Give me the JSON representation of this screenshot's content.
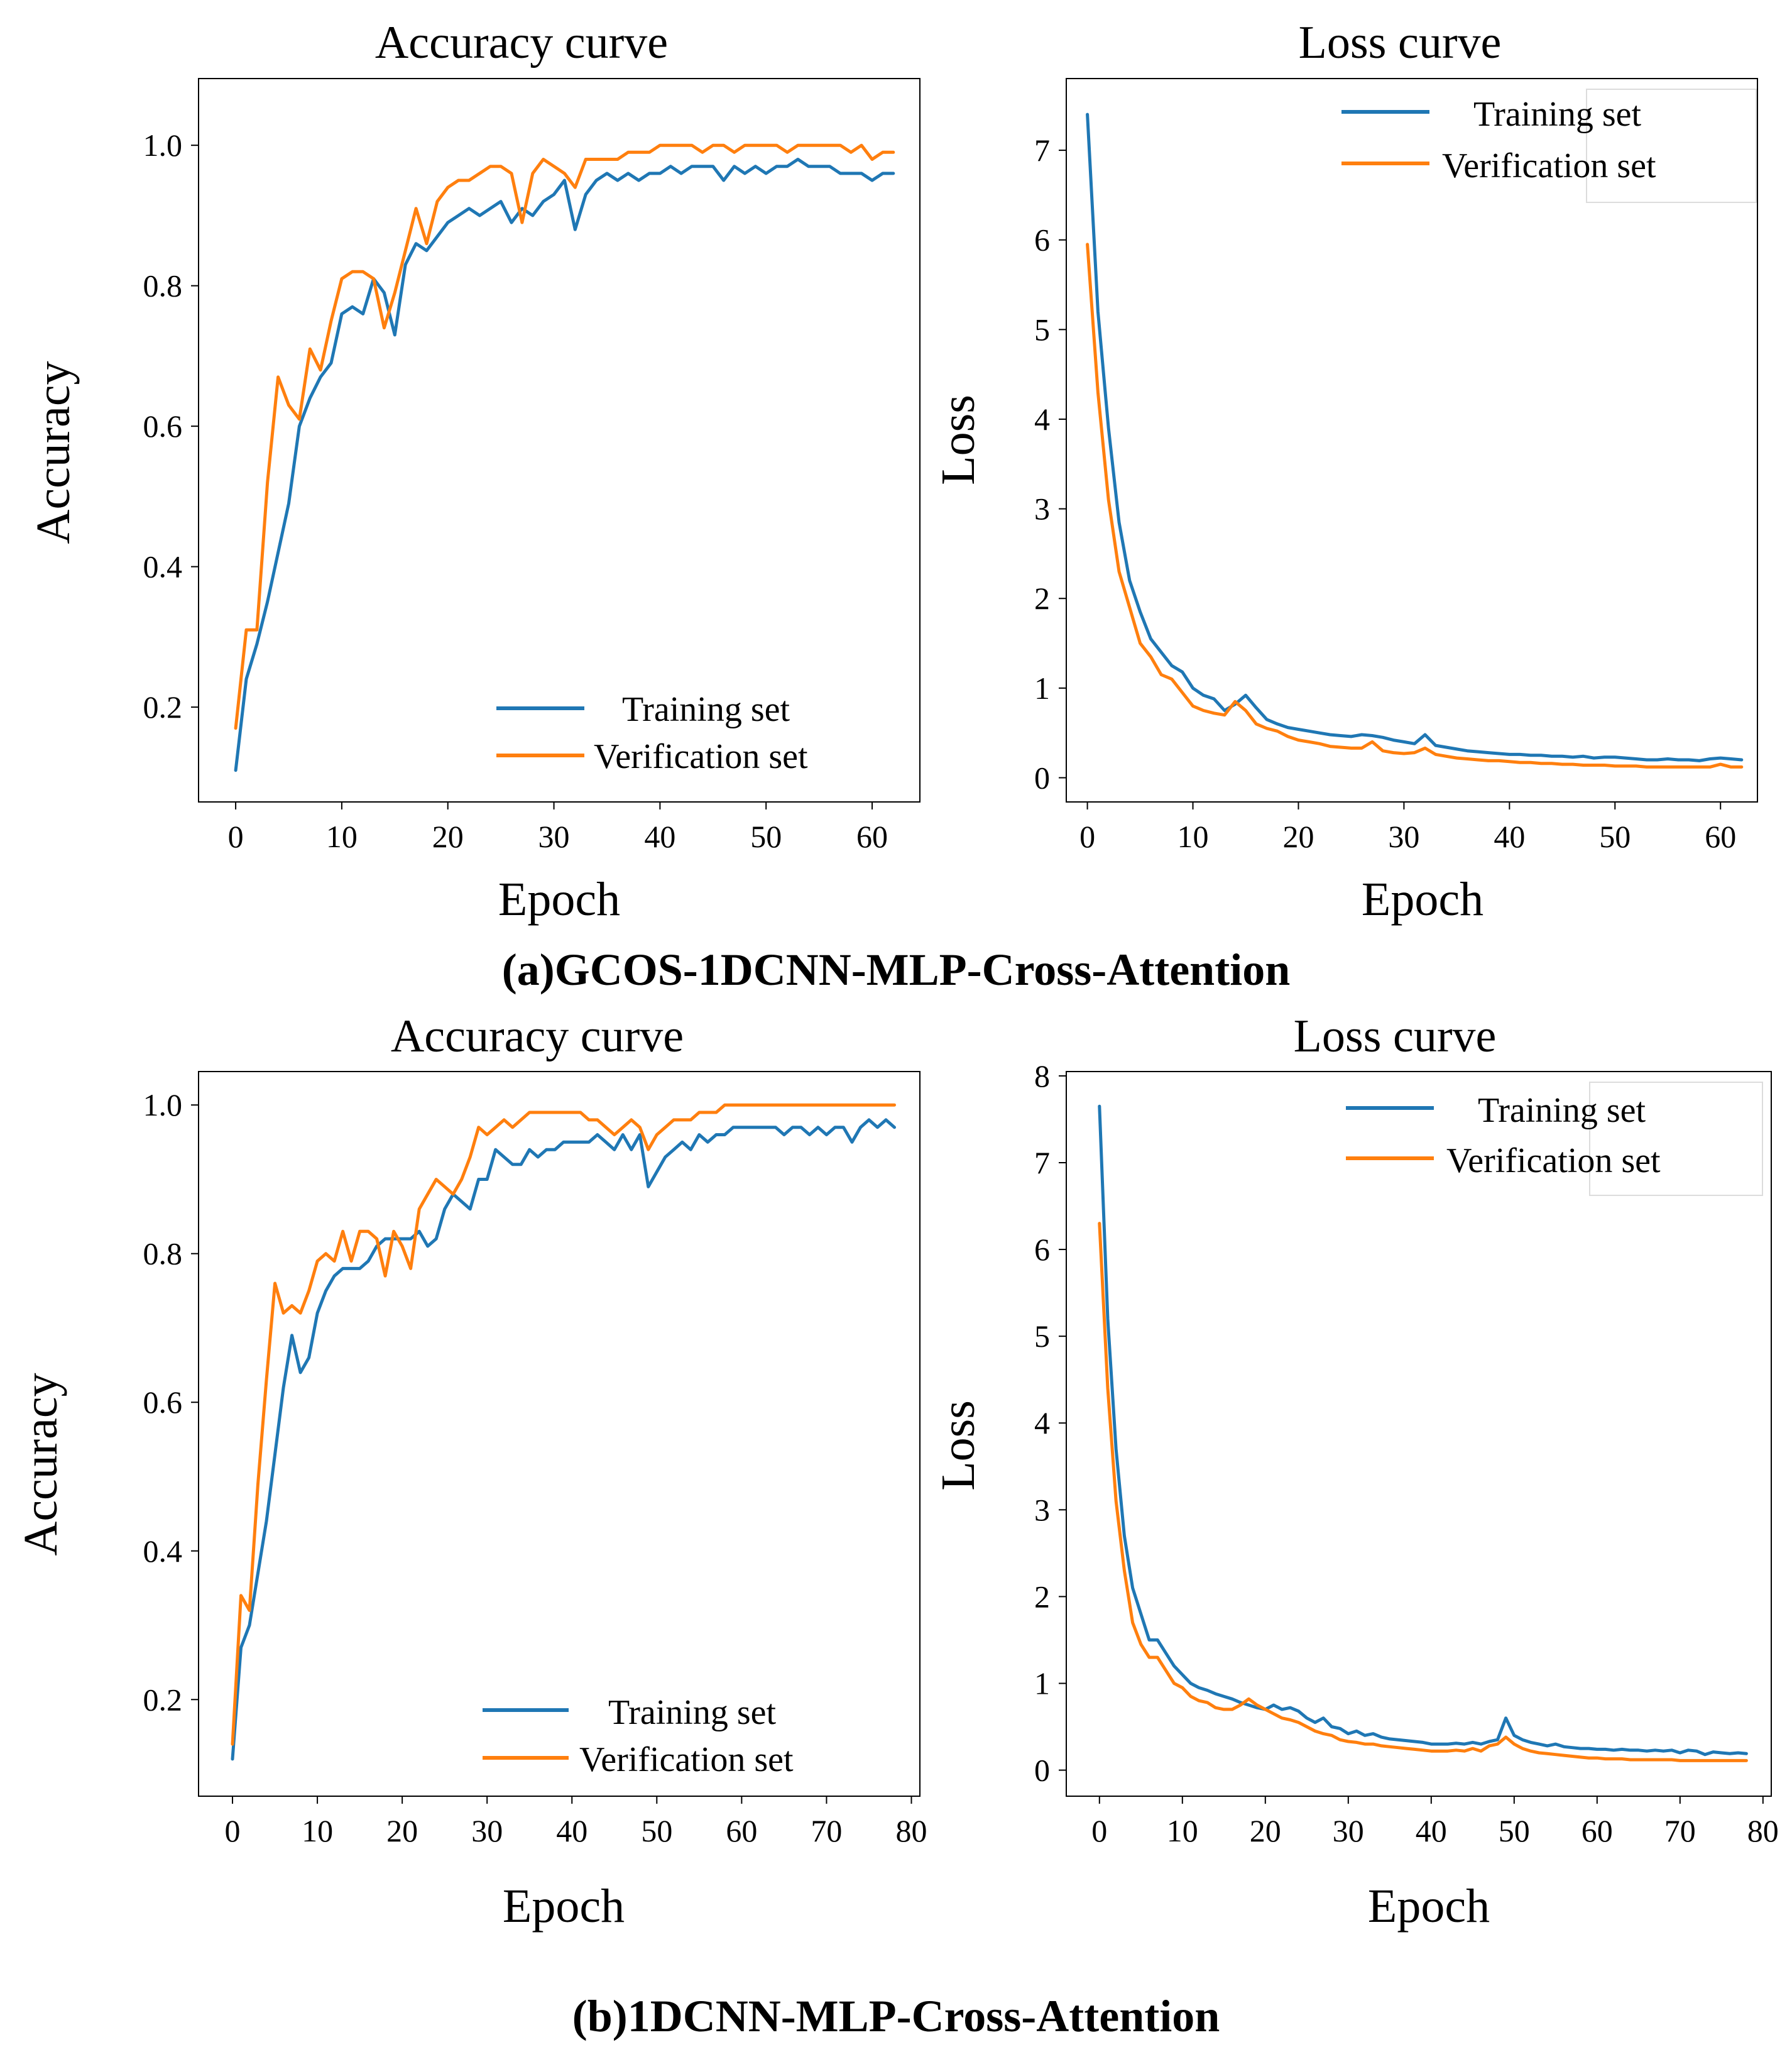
{
  "panels": [
    {
      "caption": "(a)GCOS-1DCNN-MLP-Cross-Attention",
      "charts": [
        {
          "type": "line",
          "title": "Accuracy curve",
          "xlabel": "Epoch",
          "ylabel": "Accuracy",
          "xlim": [
            -3.5,
            64.5
          ],
          "ylim": [
            0.065,
            1.095
          ],
          "xticks": [
            0,
            10,
            20,
            30,
            40,
            50,
            60
          ],
          "yticks": [
            0.2,
            0.4,
            0.6,
            0.8,
            1.0
          ],
          "ytick_labels": [
            "0.2",
            "0.4",
            "0.6",
            "0.8",
            "1.0"
          ],
          "legend_position": "bottom-right",
          "series": [
            {
              "name": "Training set",
              "color": "#1f77b4",
              "values": [
                0.11,
                0.24,
                0.29,
                0.35,
                0.42,
                0.49,
                0.6,
                0.64,
                0.67,
                0.69,
                0.76,
                0.77,
                0.76,
                0.81,
                0.79,
                0.73,
                0.83,
                0.86,
                0.85,
                0.87,
                0.89,
                0.9,
                0.91,
                0.9,
                0.91,
                0.92,
                0.89,
                0.91,
                0.9,
                0.92,
                0.93,
                0.95,
                0.88,
                0.93,
                0.95,
                0.96,
                0.95,
                0.96,
                0.95,
                0.96,
                0.96,
                0.97,
                0.96,
                0.97,
                0.97,
                0.97,
                0.95,
                0.97,
                0.96,
                0.97,
                0.96,
                0.97,
                0.97,
                0.98,
                0.97,
                0.97,
                0.97,
                0.96,
                0.96,
                0.96,
                0.95,
                0.96,
                0.96
              ]
            },
            {
              "name": "Verification set",
              "color": "#ff7f0e",
              "values": [
                0.17,
                0.31,
                0.31,
                0.52,
                0.67,
                0.63,
                0.61,
                0.71,
                0.68,
                0.75,
                0.81,
                0.82,
                0.82,
                0.81,
                0.74,
                0.79,
                0.85,
                0.91,
                0.86,
                0.92,
                0.94,
                0.95,
                0.95,
                0.96,
                0.97,
                0.97,
                0.96,
                0.89,
                0.96,
                0.98,
                0.97,
                0.96,
                0.94,
                0.98,
                0.98,
                0.98,
                0.98,
                0.99,
                0.99,
                0.99,
                1.0,
                1.0,
                1.0,
                1.0,
                0.99,
                1.0,
                1.0,
                0.99,
                1.0,
                1.0,
                1.0,
                1.0,
                0.99,
                1.0,
                1.0,
                1.0,
                1.0,
                1.0,
                0.99,
                1.0,
                0.98,
                0.99,
                0.99
              ]
            }
          ]
        },
        {
          "type": "line",
          "title": "Loss curve",
          "xlabel": "Epoch",
          "ylabel": "Loss",
          "xlim": [
            -2,
            63.5
          ],
          "ylim": [
            -0.27,
            7.8
          ],
          "xticks": [
            0,
            10,
            20,
            30,
            40,
            50,
            60
          ],
          "yticks": [
            0,
            1,
            2,
            3,
            4,
            5,
            6,
            7
          ],
          "ytick_labels": [
            "0",
            "1",
            "2",
            "3",
            "4",
            "5",
            "6",
            "7"
          ],
          "legend_position": "top-right",
          "series": [
            {
              "name": "Training set",
              "color": "#1f77b4",
              "values": [
                7.4,
                5.2,
                3.9,
                2.85,
                2.2,
                1.85,
                1.55,
                1.4,
                1.25,
                1.18,
                1.0,
                0.92,
                0.88,
                0.75,
                0.82,
                0.92,
                0.78,
                0.65,
                0.6,
                0.56,
                0.54,
                0.52,
                0.5,
                0.48,
                0.47,
                0.46,
                0.48,
                0.47,
                0.45,
                0.42,
                0.4,
                0.38,
                0.48,
                0.36,
                0.34,
                0.32,
                0.3,
                0.29,
                0.28,
                0.27,
                0.26,
                0.26,
                0.25,
                0.25,
                0.24,
                0.24,
                0.23,
                0.24,
                0.22,
                0.23,
                0.23,
                0.22,
                0.21,
                0.2,
                0.2,
                0.21,
                0.2,
                0.2,
                0.19,
                0.21,
                0.22,
                0.21,
                0.2
              ]
            },
            {
              "name": "Verification set",
              "color": "#ff7f0e",
              "values": [
                5.95,
                4.3,
                3.1,
                2.3,
                1.9,
                1.5,
                1.35,
                1.15,
                1.1,
                0.95,
                0.8,
                0.75,
                0.72,
                0.7,
                0.85,
                0.75,
                0.6,
                0.55,
                0.52,
                0.46,
                0.42,
                0.4,
                0.38,
                0.35,
                0.34,
                0.33,
                0.33,
                0.4,
                0.3,
                0.28,
                0.27,
                0.28,
                0.33,
                0.26,
                0.24,
                0.22,
                0.21,
                0.2,
                0.19,
                0.19,
                0.18,
                0.17,
                0.17,
                0.16,
                0.16,
                0.15,
                0.15,
                0.14,
                0.14,
                0.14,
                0.13,
                0.13,
                0.13,
                0.12,
                0.12,
                0.12,
                0.12,
                0.12,
                0.12,
                0.12,
                0.15,
                0.12,
                0.12
              ]
            }
          ]
        }
      ]
    },
    {
      "caption": "(b)1DCNN-MLP-Cross-Attention",
      "charts": [
        {
          "type": "line",
          "title": "Accuracy curve",
          "xlabel": "Epoch",
          "ylabel": "Accuracy",
          "xlim": [
            -4,
            81
          ],
          "ylim": [
            0.07,
            1.045
          ],
          "xticks": [
            0,
            10,
            20,
            30,
            40,
            50,
            60,
            70,
            80
          ],
          "yticks": [
            0.2,
            0.4,
            0.6,
            0.8,
            1.0
          ],
          "ytick_labels": [
            "0.2",
            "0.4",
            "0.6",
            "0.8",
            "1.0"
          ],
          "legend_position": "bottom-right",
          "series": [
            {
              "name": "Training set",
              "color": "#1f77b4",
              "values": [
                0.12,
                0.27,
                0.3,
                0.37,
                0.44,
                0.53,
                0.62,
                0.69,
                0.64,
                0.66,
                0.72,
                0.75,
                0.77,
                0.78,
                0.78,
                0.78,
                0.79,
                0.81,
                0.82,
                0.82,
                0.82,
                0.82,
                0.83,
                0.81,
                0.82,
                0.86,
                0.88,
                0.87,
                0.86,
                0.9,
                0.9,
                0.94,
                0.93,
                0.92,
                0.92,
                0.94,
                0.93,
                0.94,
                0.94,
                0.95,
                0.95,
                0.95,
                0.95,
                0.96,
                0.95,
                0.94,
                0.96,
                0.94,
                0.96,
                0.89,
                0.91,
                0.93,
                0.94,
                0.95,
                0.94,
                0.96,
                0.95,
                0.96,
                0.96,
                0.97,
                0.97,
                0.97,
                0.97,
                0.97,
                0.97,
                0.96,
                0.97,
                0.97,
                0.96,
                0.97,
                0.96,
                0.97,
                0.97,
                0.95,
                0.97,
                0.98,
                0.97,
                0.98,
                0.97
              ]
            },
            {
              "name": "Verification set",
              "color": "#ff7f0e",
              "values": [
                0.14,
                0.34,
                0.32,
                0.49,
                0.63,
                0.76,
                0.72,
                0.73,
                0.72,
                0.75,
                0.79,
                0.8,
                0.79,
                0.83,
                0.79,
                0.83,
                0.83,
                0.82,
                0.77,
                0.83,
                0.81,
                0.78,
                0.86,
                0.88,
                0.9,
                0.89,
                0.88,
                0.9,
                0.93,
                0.97,
                0.96,
                0.97,
                0.98,
                0.97,
                0.98,
                0.99,
                0.99,
                0.99,
                0.99,
                0.99,
                0.99,
                0.99,
                0.98,
                0.98,
                0.97,
                0.96,
                0.97,
                0.98,
                0.97,
                0.94,
                0.96,
                0.97,
                0.98,
                0.98,
                0.98,
                0.99,
                0.99,
                0.99,
                1.0,
                1.0,
                1.0,
                1.0,
                1.0,
                1.0,
                1.0,
                1.0,
                1.0,
                1.0,
                1.0,
                1.0,
                1.0,
                1.0,
                1.0,
                1.0,
                1.0,
                1.0,
                1.0,
                1.0,
                1.0
              ]
            }
          ]
        },
        {
          "type": "line",
          "title": "Loss curve",
          "xlabel": "Epoch",
          "ylabel": "Loss",
          "xlim": [
            -4,
            81
          ],
          "ylim": [
            -0.3,
            8.05
          ],
          "xticks": [
            0,
            10,
            20,
            30,
            40,
            50,
            60,
            70,
            80
          ],
          "yticks": [
            0,
            1,
            2,
            3,
            4,
            5,
            6,
            7,
            8
          ],
          "ytick_labels": [
            "0",
            "1",
            "2",
            "3",
            "4",
            "5",
            "6",
            "7",
            "8"
          ],
          "legend_position": "top-right",
          "series": [
            {
              "name": "Training set",
              "color": "#1f77b4",
              "values": [
                7.65,
                5.2,
                3.7,
                2.7,
                2.1,
                1.8,
                1.5,
                1.5,
                1.35,
                1.2,
                1.1,
                1.0,
                0.95,
                0.92,
                0.88,
                0.85,
                0.82,
                0.78,
                0.75,
                0.72,
                0.7,
                0.75,
                0.7,
                0.72,
                0.68,
                0.6,
                0.55,
                0.6,
                0.5,
                0.48,
                0.42,
                0.45,
                0.4,
                0.42,
                0.38,
                0.36,
                0.35,
                0.34,
                0.33,
                0.32,
                0.3,
                0.3,
                0.3,
                0.31,
                0.3,
                0.32,
                0.3,
                0.33,
                0.35,
                0.6,
                0.4,
                0.35,
                0.32,
                0.3,
                0.28,
                0.3,
                0.27,
                0.26,
                0.25,
                0.25,
                0.24,
                0.24,
                0.23,
                0.24,
                0.23,
                0.23,
                0.22,
                0.23,
                0.22,
                0.23,
                0.2,
                0.23,
                0.22,
                0.18,
                0.21,
                0.2,
                0.19,
                0.2,
                0.19
              ]
            },
            {
              "name": "Verification set",
              "color": "#ff7f0e",
              "values": [
                6.3,
                4.4,
                3.1,
                2.3,
                1.7,
                1.45,
                1.3,
                1.3,
                1.15,
                1.0,
                0.95,
                0.85,
                0.8,
                0.78,
                0.72,
                0.7,
                0.7,
                0.75,
                0.82,
                0.75,
                0.7,
                0.65,
                0.6,
                0.58,
                0.55,
                0.5,
                0.45,
                0.42,
                0.4,
                0.35,
                0.33,
                0.32,
                0.3,
                0.3,
                0.28,
                0.27,
                0.26,
                0.25,
                0.24,
                0.23,
                0.22,
                0.22,
                0.22,
                0.23,
                0.22,
                0.25,
                0.22,
                0.28,
                0.3,
                0.38,
                0.3,
                0.25,
                0.22,
                0.2,
                0.19,
                0.18,
                0.17,
                0.16,
                0.15,
                0.14,
                0.14,
                0.13,
                0.13,
                0.13,
                0.12,
                0.12,
                0.12,
                0.12,
                0.12,
                0.12,
                0.11,
                0.11,
                0.11,
                0.11,
                0.11,
                0.11,
                0.11,
                0.11,
                0.11
              ]
            }
          ]
        }
      ]
    }
  ]
}
